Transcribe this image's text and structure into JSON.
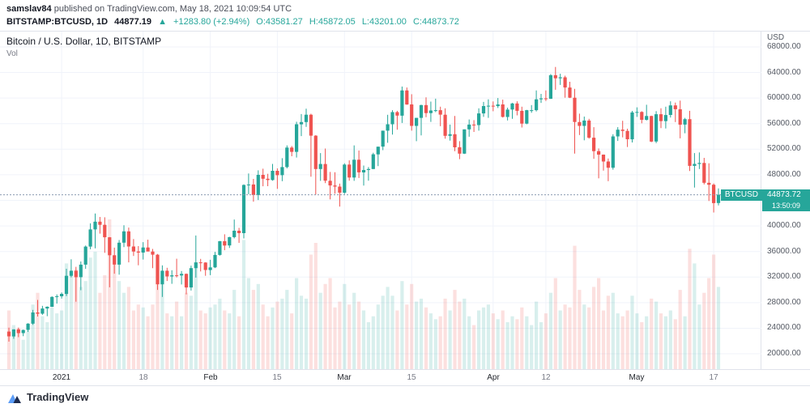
{
  "header": {
    "author": "samslav84",
    "published": "published on TradingView.com, May 18, 2021 10:09:54 UTC",
    "symbol": "BITSTAMP:BTCUSD, 1D",
    "price": "44877.19",
    "change_arrow": "▲",
    "change": "+1283.80 (+2.94%)",
    "open": "O:43581.27",
    "high": "H:45872.05",
    "low": "L:43201.00",
    "close": "C:44873.72"
  },
  "chart": {
    "title": "Bitcoin / U.S. Dollar, 1D, BITSTAMP",
    "vol_label": "Vol",
    "axis_currency": "USD",
    "badge": {
      "symbol": "BTCUSD",
      "price": "44873.72",
      "countdown": "13:50:09"
    }
  },
  "footer": {
    "brand": "TradingView"
  },
  "chart_data": {
    "type": "candlestick+volume",
    "title": "Bitcoin / U.S. Dollar, 1D, BITSTAMP",
    "exchange": "BITSTAMP",
    "interval": "1D",
    "x_start_date": "2020-12-21",
    "x_end_date": "2021-05-18",
    "ylim": [
      17600,
      70400
    ],
    "y_gridlines": [
      20000,
      24000,
      28000,
      32000,
      36000,
      40000,
      44000,
      48000,
      52000,
      56000,
      60000,
      64000,
      68000
    ],
    "last_price": 44873.72,
    "vol_max_height": 185,
    "colors": {
      "up": "#26a69a",
      "down": "#ef5350",
      "vol_up": "rgba(38,166,154,0.18)",
      "vol_down": "rgba(239,83,80,0.18)",
      "grid": "#f0f3fa",
      "last_line": "#8a9bb0",
      "badge": "#26a69a"
    },
    "x_ticks": [
      {
        "label": "2021",
        "index": 11,
        "major": true
      },
      {
        "label": "18",
        "index": 28,
        "major": false
      },
      {
        "label": "Feb",
        "index": 42,
        "major": true
      },
      {
        "label": "15",
        "index": 56,
        "major": false
      },
      {
        "label": "Mar",
        "index": 70,
        "major": true
      },
      {
        "label": "15",
        "index": 84,
        "major": false
      },
      {
        "label": "Apr",
        "index": 101,
        "major": true
      },
      {
        "label": "12",
        "index": 112,
        "major": false
      },
      {
        "label": "May",
        "index": 131,
        "major": true
      },
      {
        "label": "17",
        "index": 147,
        "major": false
      }
    ],
    "candles": [
      [
        23470,
        24100,
        21900,
        22720,
        10000
      ],
      [
        22720,
        23830,
        22350,
        23820,
        7500
      ],
      [
        23820,
        24100,
        22600,
        23240,
        7000
      ],
      [
        23240,
        23790,
        22750,
        23730,
        5000
      ],
      [
        23730,
        24790,
        23430,
        24710,
        6500
      ],
      [
        24710,
        26870,
        24520,
        26460,
        11000
      ],
      [
        26460,
        28420,
        25830,
        26270,
        13000
      ],
      [
        26270,
        27500,
        26100,
        27080,
        9000
      ],
      [
        27080,
        27410,
        25880,
        27360,
        8000
      ],
      [
        27360,
        29000,
        27320,
        28900,
        10500
      ],
      [
        28900,
        29290,
        27850,
        28990,
        9500
      ],
      [
        28990,
        29600,
        28640,
        29370,
        10000
      ],
      [
        29370,
        33300,
        29030,
        32200,
        18000
      ],
      [
        32200,
        34780,
        31960,
        33000,
        16000
      ],
      [
        33000,
        33600,
        28150,
        31990,
        17000
      ],
      [
        31990,
        34440,
        29950,
        33950,
        14000
      ],
      [
        33950,
        36940,
        33290,
        36770,
        15000
      ],
      [
        36770,
        40400,
        36350,
        39460,
        19000
      ],
      [
        39460,
        41950,
        36500,
        40670,
        20000
      ],
      [
        40670,
        41400,
        38800,
        40170,
        13000
      ],
      [
        40170,
        41350,
        35800,
        38220,
        16000
      ],
      [
        38220,
        38270,
        30400,
        35410,
        25500
      ],
      [
        35410,
        36600,
        32530,
        33950,
        18000
      ],
      [
        33950,
        37800,
        32380,
        37380,
        15000
      ],
      [
        37380,
        40100,
        36700,
        39150,
        13000
      ],
      [
        39150,
        39750,
        34300,
        36780,
        14000
      ],
      [
        36780,
        37950,
        35300,
        36000,
        10000
      ],
      [
        36000,
        36850,
        33850,
        35830,
        11000
      ],
      [
        35830,
        37470,
        34740,
        36630,
        10500
      ],
      [
        36630,
        37850,
        36200,
        36000,
        9000
      ],
      [
        36000,
        36400,
        33400,
        35500,
        11000
      ],
      [
        35500,
        35600,
        30000,
        30870,
        18500
      ],
      [
        30870,
        33830,
        28900,
        33000,
        16000
      ],
      [
        33000,
        33450,
        31390,
        32100,
        9500
      ],
      [
        32100,
        33070,
        30950,
        32280,
        9000
      ],
      [
        32280,
        34875,
        31950,
        32250,
        11500
      ],
      [
        32250,
        32950,
        30850,
        32500,
        9000
      ],
      [
        32500,
        32550,
        29300,
        30370,
        13000
      ],
      [
        30370,
        33800,
        29900,
        33400,
        12500
      ],
      [
        33400,
        38500,
        31920,
        34300,
        17500
      ],
      [
        34300,
        34850,
        32880,
        34270,
        10000
      ],
      [
        34270,
        34320,
        32200,
        33100,
        9500
      ],
      [
        33100,
        34700,
        32300,
        33520,
        10500
      ],
      [
        33520,
        35950,
        33420,
        35470,
        11000
      ],
      [
        35470,
        37650,
        35350,
        37620,
        12000
      ],
      [
        37620,
        38700,
        36200,
        36940,
        10000
      ],
      [
        36940,
        38300,
        36550,
        38250,
        9500
      ],
      [
        38250,
        41000,
        38050,
        39250,
        13500
      ],
      [
        39250,
        39700,
        37350,
        38870,
        9000
      ],
      [
        38870,
        46500,
        38050,
        46400,
        22000
      ],
      [
        46400,
        48200,
        44960,
        46480,
        15500
      ],
      [
        46480,
        47350,
        43800,
        44840,
        13500
      ],
      [
        44840,
        48700,
        44050,
        47990,
        14500
      ],
      [
        47990,
        48950,
        46200,
        47380,
        11000
      ],
      [
        47380,
        48150,
        46210,
        47180,
        9000
      ],
      [
        47180,
        49700,
        47060,
        48620,
        10500
      ],
      [
        48620,
        49000,
        45800,
        47930,
        11500
      ],
      [
        47930,
        50600,
        47000,
        49200,
        12000
      ],
      [
        49200,
        52600,
        49000,
        52250,
        13500
      ],
      [
        52250,
        52500,
        50900,
        51580,
        9500
      ],
      [
        51580,
        56300,
        50700,
        55900,
        15500
      ],
      [
        55900,
        57500,
        54050,
        56250,
        12500
      ],
      [
        56250,
        58350,
        55500,
        57400,
        12000
      ],
      [
        57400,
        57550,
        47700,
        54120,
        19500
      ],
      [
        54120,
        54200,
        44900,
        48900,
        21500
      ],
      [
        48900,
        51400,
        47050,
        49680,
        13000
      ],
      [
        49680,
        52100,
        46700,
        47070,
        14500
      ],
      [
        47070,
        48450,
        44150,
        46330,
        15500
      ],
      [
        46330,
        48400,
        45050,
        46150,
        10500
      ],
      [
        46150,
        46620,
        43020,
        45200,
        11500
      ],
      [
        45200,
        49800,
        45000,
        49600,
        14500
      ],
      [
        49600,
        50250,
        47080,
        47570,
        11000
      ],
      [
        47570,
        52600,
        47050,
        50350,
        13000
      ],
      [
        50350,
        51800,
        47500,
        48370,
        11500
      ],
      [
        48370,
        49450,
        46300,
        48750,
        10000
      ],
      [
        48750,
        49200,
        47080,
        48900,
        8000
      ],
      [
        48900,
        51450,
        48900,
        51200,
        9000
      ],
      [
        51200,
        52400,
        49350,
        52400,
        11000
      ],
      [
        52400,
        54900,
        51850,
        54900,
        12500
      ],
      [
        54900,
        57380,
        53000,
        55900,
        14000
      ],
      [
        55900,
        58100,
        54300,
        57800,
        12500
      ],
      [
        57800,
        58000,
        55050,
        57250,
        10000
      ],
      [
        57250,
        61800,
        56100,
        61200,
        15000
      ],
      [
        61200,
        61650,
        58950,
        59000,
        11000
      ],
      [
        59000,
        60600,
        54900,
        55650,
        14500
      ],
      [
        55650,
        56900,
        53250,
        56900,
        11500
      ],
      [
        56900,
        58950,
        54150,
        58900,
        12000
      ],
      [
        58900,
        60100,
        57000,
        57650,
        10500
      ],
      [
        57650,
        59450,
        56270,
        58050,
        9500
      ],
      [
        58050,
        59900,
        57800,
        58100,
        8500
      ],
      [
        58100,
        58650,
        55600,
        57400,
        9000
      ],
      [
        57400,
        58400,
        53650,
        54100,
        12000
      ],
      [
        54100,
        55850,
        53350,
        54350,
        10000
      ],
      [
        54350,
        57200,
        51700,
        52300,
        13500
      ],
      [
        52300,
        53250,
        50450,
        51300,
        11500
      ],
      [
        51300,
        55100,
        51250,
        55100,
        12000
      ],
      [
        55100,
        56650,
        53950,
        55850,
        9000
      ],
      [
        55850,
        56550,
        54700,
        55780,
        7500
      ],
      [
        55780,
        58400,
        54900,
        57600,
        10000
      ],
      [
        57600,
        59400,
        57050,
        58750,
        10500
      ],
      [
        58750,
        59800,
        56900,
        58800,
        11000
      ],
      [
        58800,
        59470,
        57940,
        58730,
        9500
      ],
      [
        58730,
        60000,
        58450,
        59000,
        8500
      ],
      [
        59000,
        59750,
        56950,
        57050,
        10000
      ],
      [
        57050,
        58500,
        56500,
        58200,
        8000
      ],
      [
        58200,
        59250,
        56750,
        59150,
        9000
      ],
      [
        59150,
        59500,
        57300,
        58000,
        8500
      ],
      [
        58000,
        58650,
        55400,
        56000,
        10500
      ],
      [
        56000,
        58150,
        55900,
        58100,
        9000
      ],
      [
        58100,
        58900,
        57700,
        58100,
        7500
      ],
      [
        58100,
        61200,
        57900,
        59800,
        11500
      ],
      [
        59800,
        60650,
        59250,
        59950,
        8000
      ],
      [
        59950,
        61200,
        59550,
        59890,
        9500
      ],
      [
        59890,
        63750,
        59850,
        63580,
        13000
      ],
      [
        63580,
        64870,
        61300,
        63100,
        15500
      ],
      [
        63100,
        63800,
        62050,
        63250,
        10000
      ],
      [
        63250,
        63500,
        60050,
        61650,
        11000
      ],
      [
        61650,
        62550,
        60000,
        60050,
        10500
      ],
      [
        60050,
        61450,
        51300,
        56250,
        21000
      ],
      [
        56250,
        57560,
        54220,
        55650,
        13500
      ],
      [
        55650,
        57100,
        53400,
        56480,
        11000
      ],
      [
        56480,
        56750,
        53650,
        53800,
        10500
      ],
      [
        53800,
        55450,
        50500,
        51700,
        14000
      ],
      [
        51700,
        52120,
        47450,
        51150,
        15500
      ],
      [
        51150,
        51170,
        48650,
        50080,
        10000
      ],
      [
        50080,
        50550,
        47000,
        49100,
        12500
      ],
      [
        49100,
        54350,
        48800,
        54000,
        13000
      ],
      [
        54000,
        55450,
        53300,
        55050,
        9500
      ],
      [
        55050,
        56450,
        53850,
        54860,
        9000
      ],
      [
        54860,
        55200,
        52350,
        53550,
        10000
      ],
      [
        53550,
        57990,
        53050,
        57750,
        12500
      ],
      [
        57750,
        58550,
        57050,
        57830,
        9500
      ],
      [
        57830,
        57940,
        56050,
        56600,
        8000
      ],
      [
        56600,
        58950,
        56480,
        57200,
        9000
      ],
      [
        57200,
        57250,
        53100,
        53200,
        12000
      ],
      [
        53200,
        57950,
        52950,
        57470,
        11500
      ],
      [
        57470,
        58400,
        55300,
        56400,
        9500
      ],
      [
        56400,
        58650,
        55250,
        57350,
        9000
      ],
      [
        57350,
        59500,
        56950,
        58850,
        10000
      ],
      [
        58850,
        59300,
        56250,
        58250,
        8500
      ],
      [
        58250,
        59600,
        53700,
        55850,
        13500
      ],
      [
        55850,
        56900,
        54500,
        56700,
        9000
      ],
      [
        56700,
        58000,
        48600,
        49400,
        20500
      ],
      [
        49400,
        51400,
        46000,
        49700,
        18000
      ],
      [
        49700,
        51500,
        48900,
        49850,
        11000
      ],
      [
        49850,
        50650,
        46500,
        46750,
        13000
      ],
      [
        46750,
        49800,
        43900,
        46450,
        15500
      ],
      [
        46450,
        46650,
        42100,
        43580,
        19500
      ],
      [
        43581,
        45872,
        43201,
        44874,
        14000
      ]
    ]
  }
}
